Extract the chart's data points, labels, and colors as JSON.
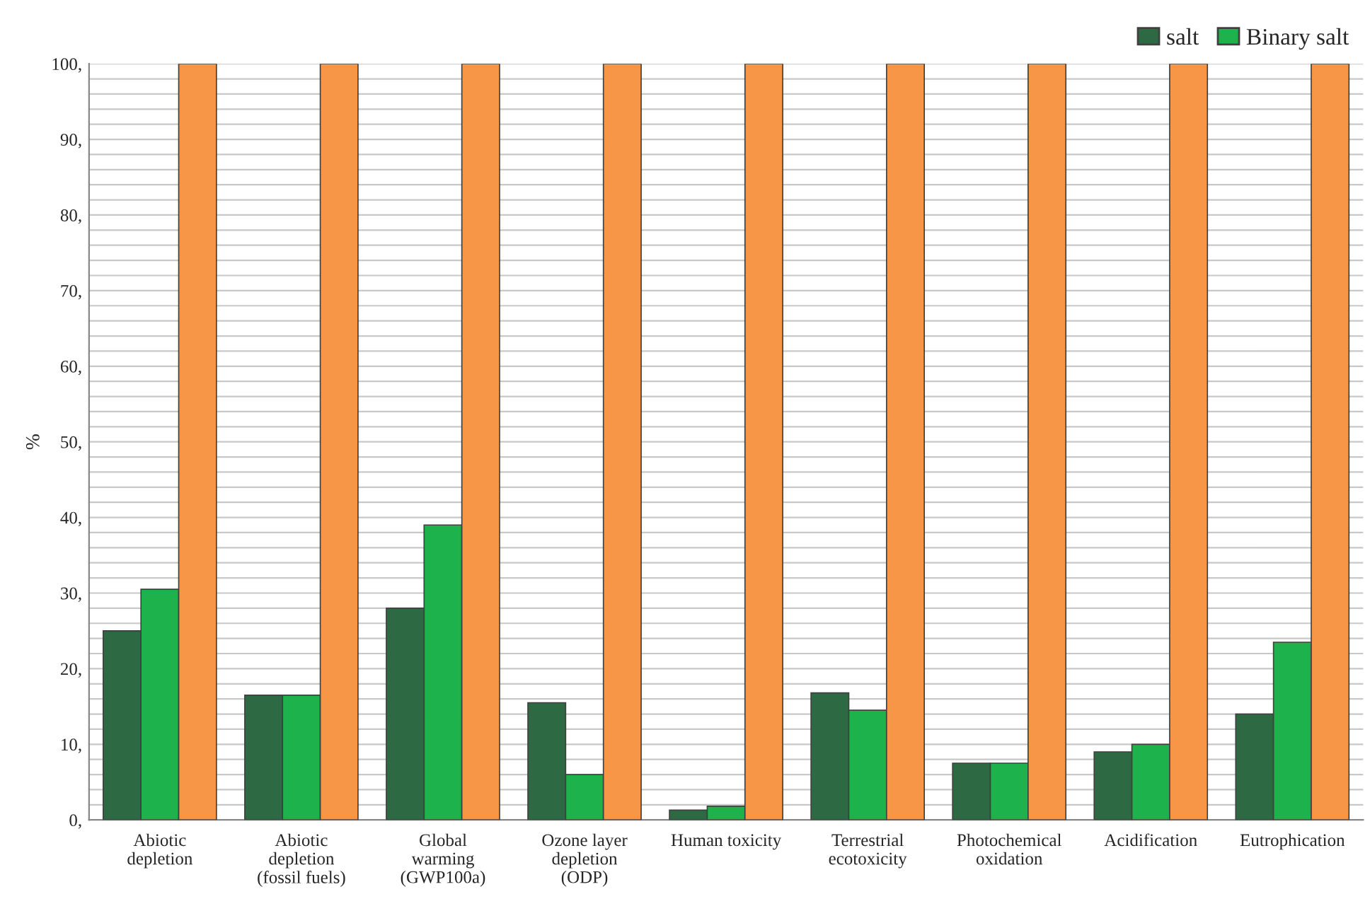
{
  "chart_data": {
    "type": "bar",
    "ylabel": "%",
    "categories": [
      "Abiotic\ndepletion",
      "Abiotic\ndepletion\n(fossil fuels)",
      "Global\nwarming\n(GWP100a)",
      "Ozone layer\ndepletion\n(ODP)",
      "Human toxicity",
      "Terrestrial\necotoxicity",
      "Photochemical\noxidation",
      "Acidification",
      "Eutrophication"
    ],
    "series": [
      {
        "name": "salt",
        "color": "#2d6a43",
        "values": [
          25,
          16.5,
          28,
          15.5,
          1.3,
          16.8,
          7.5,
          9,
          14
        ]
      },
      {
        "name": "Binary salt",
        "color": "#1db24b",
        "values": [
          30.5,
          16.5,
          39,
          6,
          1.8,
          14.5,
          7.5,
          10,
          23.5
        ]
      },
      {
        "color": "#f79646",
        "values": [
          100,
          100,
          100,
          100,
          100,
          100,
          100,
          100,
          100
        ]
      }
    ],
    "ylim": [
      0,
      100
    ],
    "yticks": [
      {
        "value": 0,
        "label": "0,"
      },
      {
        "value": 2,
        "label": null
      },
      {
        "value": 4,
        "label": null
      },
      {
        "value": 6,
        "label": null
      },
      {
        "value": 8,
        "label": null
      },
      {
        "value": 10,
        "label": "10,"
      },
      {
        "value": 12,
        "label": null
      },
      {
        "value": 14,
        "label": null
      },
      {
        "value": 16,
        "label": null
      },
      {
        "value": 18,
        "label": null
      },
      {
        "value": 20,
        "label": "20,"
      },
      {
        "value": 22,
        "label": null
      },
      {
        "value": 24,
        "label": null
      },
      {
        "value": 26,
        "label": null
      },
      {
        "value": 28,
        "label": null
      },
      {
        "value": 30,
        "label": "30,"
      },
      {
        "value": 32,
        "label": null
      },
      {
        "value": 34,
        "label": null
      },
      {
        "value": 36,
        "label": null
      },
      {
        "value": 38,
        "label": null
      },
      {
        "value": 40,
        "label": "40,"
      },
      {
        "value": 42,
        "label": null
      },
      {
        "value": 44,
        "label": null
      },
      {
        "value": 46,
        "label": null
      },
      {
        "value": 48,
        "label": null
      },
      {
        "value": 50,
        "label": "50,"
      },
      {
        "value": 52,
        "label": null
      },
      {
        "value": 54,
        "label": null
      },
      {
        "value": 56,
        "label": null
      },
      {
        "value": 58,
        "label": null
      },
      {
        "value": 60,
        "label": "60,"
      },
      {
        "value": 62,
        "label": null
      },
      {
        "value": 64,
        "label": null
      },
      {
        "value": 66,
        "label": null
      },
      {
        "value": 68,
        "label": null
      },
      {
        "value": 70,
        "label": "70,"
      },
      {
        "value": 72,
        "label": null
      },
      {
        "value": 74,
        "label": null
      },
      {
        "value": 76,
        "label": null
      },
      {
        "value": 78,
        "label": null
      },
      {
        "value": 80,
        "label": "80,"
      },
      {
        "value": 82,
        "label": null
      },
      {
        "value": 84,
        "label": null
      },
      {
        "value": 86,
        "label": null
      },
      {
        "value": 88,
        "label": null
      },
      {
        "value": 90,
        "label": "90,"
      },
      {
        "value": 92,
        "label": null
      },
      {
        "value": 94,
        "label": null
      },
      {
        "value": 96,
        "label": null
      },
      {
        "value": 98,
        "label": null
      },
      {
        "value": 100,
        "label": "100,"
      }
    ],
    "grid": "y",
    "legend": "top right"
  }
}
